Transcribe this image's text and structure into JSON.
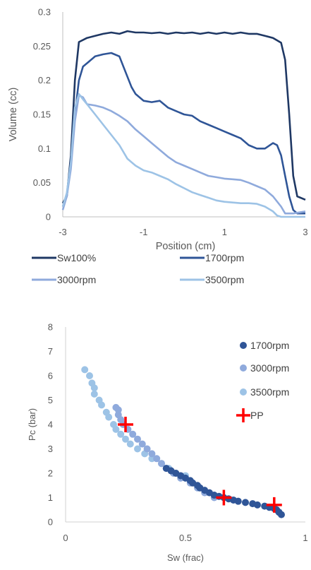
{
  "chart_data": [
    {
      "type": "line",
      "xlabel": "Position (cm)",
      "ylabel": "Volume (cc)",
      "xlim": [
        -3,
        3
      ],
      "ylim": [
        0,
        0.3
      ],
      "x_ticks": [
        "-3",
        "-1",
        "1",
        "3"
      ],
      "y_ticks": [
        "0",
        "0.05",
        "0.1",
        "0.15",
        "0.2",
        "0.25",
        "0.3"
      ],
      "legend_position": "bottom",
      "series": [
        {
          "name": "Sw100%",
          "color": "#1f3864",
          "points": [
            [
              -3,
              0.02
            ],
            [
              -2.9,
              0.03
            ],
            [
              -2.8,
              0.09
            ],
            [
              -2.7,
              0.2
            ],
            [
              -2.6,
              0.256
            ],
            [
              -2.4,
              0.262
            ],
            [
              -2.2,
              0.265
            ],
            [
              -2.0,
              0.268
            ],
            [
              -1.8,
              0.27
            ],
            [
              -1.6,
              0.268
            ],
            [
              -1.4,
              0.272
            ],
            [
              -1.2,
              0.27
            ],
            [
              -1.0,
              0.27
            ],
            [
              -0.8,
              0.269
            ],
            [
              -0.6,
              0.27
            ],
            [
              -0.4,
              0.268
            ],
            [
              -0.2,
              0.27
            ],
            [
              0.0,
              0.269
            ],
            [
              0.2,
              0.27
            ],
            [
              0.4,
              0.268
            ],
            [
              0.6,
              0.27
            ],
            [
              0.8,
              0.268
            ],
            [
              1.0,
              0.27
            ],
            [
              1.2,
              0.268
            ],
            [
              1.4,
              0.27
            ],
            [
              1.6,
              0.268
            ],
            [
              1.8,
              0.268
            ],
            [
              2.0,
              0.265
            ],
            [
              2.2,
              0.262
            ],
            [
              2.4,
              0.255
            ],
            [
              2.5,
              0.23
            ],
            [
              2.6,
              0.15
            ],
            [
              2.7,
              0.06
            ],
            [
              2.8,
              0.03
            ],
            [
              3.0,
              0.025
            ]
          ]
        },
        {
          "name": "1700rpm",
          "color": "#2f5597",
          "points": [
            [
              -3,
              0.015
            ],
            [
              -2.9,
              0.03
            ],
            [
              -2.8,
              0.08
            ],
            [
              -2.7,
              0.15
            ],
            [
              -2.6,
              0.2
            ],
            [
              -2.5,
              0.22
            ],
            [
              -2.4,
              0.225
            ],
            [
              -2.2,
              0.235
            ],
            [
              -2.0,
              0.238
            ],
            [
              -1.8,
              0.24
            ],
            [
              -1.6,
              0.235
            ],
            [
              -1.5,
              0.22
            ],
            [
              -1.3,
              0.19
            ],
            [
              -1.2,
              0.18
            ],
            [
              -1.0,
              0.17
            ],
            [
              -0.8,
              0.168
            ],
            [
              -0.6,
              0.17
            ],
            [
              -0.4,
              0.16
            ],
            [
              -0.2,
              0.155
            ],
            [
              0.0,
              0.15
            ],
            [
              0.2,
              0.148
            ],
            [
              0.4,
              0.14
            ],
            [
              0.6,
              0.135
            ],
            [
              0.8,
              0.13
            ],
            [
              1.0,
              0.125
            ],
            [
              1.2,
              0.12
            ],
            [
              1.4,
              0.115
            ],
            [
              1.6,
              0.105
            ],
            [
              1.8,
              0.1
            ],
            [
              2.0,
              0.1
            ],
            [
              2.2,
              0.108
            ],
            [
              2.3,
              0.105
            ],
            [
              2.4,
              0.09
            ],
            [
              2.5,
              0.06
            ],
            [
              2.6,
              0.03
            ],
            [
              2.7,
              0.01
            ],
            [
              2.8,
              0.005
            ],
            [
              3.0,
              0.005
            ]
          ]
        },
        {
          "name": "3000rpm",
          "color": "#8faadc",
          "points": [
            [
              -3,
              0.01
            ],
            [
              -2.9,
              0.03
            ],
            [
              -2.8,
              0.07
            ],
            [
              -2.7,
              0.14
            ],
            [
              -2.6,
              0.178
            ],
            [
              -2.5,
              0.175
            ],
            [
              -2.4,
              0.165
            ],
            [
              -2.2,
              0.163
            ],
            [
              -2.0,
              0.16
            ],
            [
              -1.8,
              0.155
            ],
            [
              -1.6,
              0.148
            ],
            [
              -1.4,
              0.14
            ],
            [
              -1.2,
              0.128
            ],
            [
              -1.0,
              0.118
            ],
            [
              -0.8,
              0.108
            ],
            [
              -0.6,
              0.098
            ],
            [
              -0.4,
              0.088
            ],
            [
              -0.2,
              0.08
            ],
            [
              0.0,
              0.075
            ],
            [
              0.2,
              0.07
            ],
            [
              0.4,
              0.065
            ],
            [
              0.6,
              0.06
            ],
            [
              0.8,
              0.058
            ],
            [
              1.0,
              0.056
            ],
            [
              1.2,
              0.055
            ],
            [
              1.4,
              0.054
            ],
            [
              1.6,
              0.05
            ],
            [
              1.8,
              0.045
            ],
            [
              2.0,
              0.04
            ],
            [
              2.2,
              0.03
            ],
            [
              2.4,
              0.015
            ],
            [
              2.5,
              0.005
            ],
            [
              2.7,
              0.005
            ],
            [
              3.0,
              0.008
            ]
          ]
        },
        {
          "name": "3500rpm",
          "color": "#9dc3e6",
          "points": [
            [
              -3,
              0.015
            ],
            [
              -2.9,
              0.035
            ],
            [
              -2.8,
              0.08
            ],
            [
              -2.7,
              0.16
            ],
            [
              -2.6,
              0.18
            ],
            [
              -2.5,
              0.172
            ],
            [
              -2.4,
              0.165
            ],
            [
              -2.2,
              0.15
            ],
            [
              -2.0,
              0.135
            ],
            [
              -1.8,
              0.12
            ],
            [
              -1.6,
              0.105
            ],
            [
              -1.4,
              0.085
            ],
            [
              -1.2,
              0.075
            ],
            [
              -1.0,
              0.068
            ],
            [
              -0.8,
              0.065
            ],
            [
              -0.6,
              0.06
            ],
            [
              -0.4,
              0.055
            ],
            [
              -0.2,
              0.048
            ],
            [
              0.0,
              0.042
            ],
            [
              0.2,
              0.036
            ],
            [
              0.4,
              0.032
            ],
            [
              0.6,
              0.028
            ],
            [
              0.8,
              0.024
            ],
            [
              1.0,
              0.022
            ],
            [
              1.2,
              0.021
            ],
            [
              1.4,
              0.02
            ],
            [
              1.6,
              0.02
            ],
            [
              1.8,
              0.019
            ],
            [
              2.0,
              0.015
            ],
            [
              2.2,
              0.008
            ],
            [
              2.3,
              0.002
            ],
            [
              2.4,
              0.0
            ],
            [
              3.0,
              0.0
            ]
          ]
        }
      ]
    },
    {
      "type": "scatter",
      "xlabel": "Sw (frac)",
      "ylabel": "Pc (bar)",
      "xlim": [
        0,
        1
      ],
      "ylim": [
        0,
        8
      ],
      "x_ticks": [
        "0",
        "0.5",
        "1"
      ],
      "y_ticks": [
        "0",
        "1",
        "2",
        "3",
        "4",
        "5",
        "6",
        "7",
        "8"
      ],
      "legend_position": "right",
      "series": [
        {
          "name": "1700rpm",
          "color": "#2f5597",
          "marker": "circle",
          "points": [
            [
              0.9,
              0.3
            ],
            [
              0.89,
              0.4
            ],
            [
              0.88,
              0.5
            ],
            [
              0.87,
              0.55
            ],
            [
              0.85,
              0.6
            ],
            [
              0.83,
              0.65
            ],
            [
              0.8,
              0.7
            ],
            [
              0.78,
              0.75
            ],
            [
              0.75,
              0.8
            ],
            [
              0.72,
              0.85
            ],
            [
              0.7,
              0.9
            ],
            [
              0.68,
              0.95
            ],
            [
              0.66,
              1.0
            ],
            [
              0.64,
              1.05
            ],
            [
              0.62,
              1.1
            ],
            [
              0.6,
              1.2
            ],
            [
              0.58,
              1.3
            ],
            [
              0.56,
              1.4
            ],
            [
              0.55,
              1.5
            ],
            [
              0.53,
              1.6
            ],
            [
              0.52,
              1.7
            ],
            [
              0.5,
              1.8
            ],
            [
              0.48,
              1.9
            ],
            [
              0.46,
              2.0
            ],
            [
              0.44,
              2.1
            ],
            [
              0.42,
              2.2
            ]
          ]
        },
        {
          "name": "3000rpm",
          "color": "#8faadc",
          "marker": "circle",
          "points": [
            [
              0.62,
              1.0
            ],
            [
              0.58,
              1.2
            ],
            [
              0.55,
              1.4
            ],
            [
              0.52,
              1.6
            ],
            [
              0.48,
              1.8
            ],
            [
              0.45,
              2.0
            ],
            [
              0.42,
              2.2
            ],
            [
              0.4,
              2.4
            ],
            [
              0.38,
              2.6
            ],
            [
              0.36,
              2.8
            ],
            [
              0.34,
              3.0
            ],
            [
              0.32,
              3.2
            ],
            [
              0.3,
              3.4
            ],
            [
              0.28,
              3.6
            ],
            [
              0.26,
              3.8
            ],
            [
              0.24,
              4.0
            ],
            [
              0.23,
              4.2
            ],
            [
              0.22,
              4.4
            ],
            [
              0.22,
              4.6
            ],
            [
              0.21,
              4.7
            ]
          ]
        },
        {
          "name": "3500rpm",
          "color": "#9dc3e6",
          "marker": "circle",
          "points": [
            [
              0.08,
              6.25
            ],
            [
              0.1,
              6.0
            ],
            [
              0.11,
              5.7
            ],
            [
              0.12,
              5.5
            ],
            [
              0.12,
              5.25
            ],
            [
              0.14,
              5.0
            ],
            [
              0.15,
              4.8
            ],
            [
              0.17,
              4.5
            ],
            [
              0.18,
              4.3
            ],
            [
              0.2,
              4.0
            ],
            [
              0.21,
              3.8
            ],
            [
              0.23,
              3.6
            ],
            [
              0.25,
              3.4
            ],
            [
              0.27,
              3.2
            ],
            [
              0.3,
              3.0
            ],
            [
              0.33,
              2.8
            ],
            [
              0.36,
              2.6
            ],
            [
              0.4,
              2.4
            ],
            [
              0.43,
              2.2
            ],
            [
              0.46,
              2.0
            ],
            [
              0.5,
              1.9
            ],
            [
              0.5,
              1.8
            ]
          ]
        },
        {
          "name": "PP",
          "color": "#ff0000",
          "marker": "plus",
          "points": [
            [
              0.25,
              4.0
            ],
            [
              0.66,
              1.0
            ],
            [
              0.87,
              0.7
            ]
          ]
        }
      ]
    }
  ]
}
